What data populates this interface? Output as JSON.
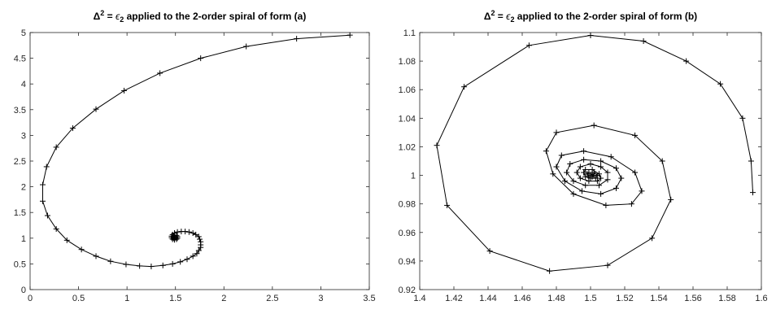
{
  "chart_data": [
    {
      "type": "line",
      "title_parts": {
        "delta": "Δ",
        "sup": "2",
        "eq": " = ",
        "eps": "ϵ",
        "sub": "2",
        "rest": " applied to the 2-order spiral of form (a)"
      },
      "xlim": [
        0,
        3.5
      ],
      "ylim": [
        0,
        5
      ],
      "xticks": [
        0,
        0.5,
        1,
        1.5,
        2,
        2.5,
        3,
        3.5
      ],
      "xtick_labels": [
        "0",
        "0.5",
        "1",
        "1.5",
        "2",
        "2.5",
        "3",
        "3.5"
      ],
      "yticks": [
        0,
        0.5,
        1,
        1.5,
        2,
        2.5,
        3,
        3.5,
        4,
        4.5,
        5
      ],
      "ytick_labels": [
        "0",
        "0.5",
        "1",
        "1.5",
        "2",
        "2.5",
        "3",
        "3.5",
        "4",
        "4.5",
        "5"
      ],
      "grid": false,
      "series": [
        {
          "marker": "+",
          "color": "#000000",
          "x": [
            3.3,
            2.75,
            2.23,
            1.76,
            1.34,
            0.97,
            0.68,
            0.44,
            0.27,
            0.17,
            0.13,
            0.13,
            0.18,
            0.27,
            0.38,
            0.53,
            0.68,
            0.83,
            0.99,
            1.13,
            1.25,
            1.37,
            1.47,
            1.55,
            1.62,
            1.68,
            1.72,
            1.74,
            1.76,
            1.76,
            1.76,
            1.75,
            1.74,
            1.71,
            1.68,
            1.64,
            1.6,
            1.56,
            1.52,
            1.49,
            1.47,
            1.46,
            1.46,
            1.47,
            1.49,
            1.51,
            1.52,
            1.52,
            1.51,
            1.49,
            1.48,
            1.48,
            1.49,
            1.5
          ],
          "y": [
            4.95,
            4.88,
            4.73,
            4.5,
            4.21,
            3.87,
            3.51,
            3.14,
            2.77,
            2.39,
            2.04,
            1.72,
            1.44,
            1.18,
            0.96,
            0.78,
            0.65,
            0.55,
            0.49,
            0.46,
            0.45,
            0.47,
            0.5,
            0.54,
            0.59,
            0.65,
            0.7,
            0.76,
            0.82,
            0.87,
            0.93,
            0.98,
            1.03,
            1.07,
            1.1,
            1.12,
            1.13,
            1.13,
            1.12,
            1.1,
            1.07,
            1.04,
            1.01,
            0.98,
            0.97,
            0.98,
            1.0,
            1.03,
            1.05,
            1.05,
            1.03,
            1.0,
            1.0,
            1.01
          ]
        }
      ]
    },
    {
      "type": "line",
      "title_parts": {
        "delta": "Δ",
        "sup": "2",
        "eq": " = ",
        "eps": "ϵ",
        "sub": "2",
        "rest": " applied to the 2-order spiral of form (b)"
      },
      "xlim": [
        1.4,
        1.6
      ],
      "ylim": [
        0.92,
        1.1
      ],
      "xticks": [
        1.4,
        1.42,
        1.44,
        1.46,
        1.48,
        1.5,
        1.52,
        1.54,
        1.56,
        1.58,
        1.6
      ],
      "xtick_labels": [
        "1.4",
        "1.42",
        "1.44",
        "1.46",
        "1.48",
        "1.5",
        "1.52",
        "1.54",
        "1.56",
        "1.58",
        "1.6"
      ],
      "yticks": [
        0.92,
        0.94,
        0.96,
        0.98,
        1.0,
        1.02,
        1.04,
        1.06,
        1.08,
        1.1
      ],
      "ytick_labels": [
        "0.92",
        "0.94",
        "0.96",
        "0.98",
        "1",
        "1.02",
        "1.04",
        "1.06",
        "1.08",
        "1.1"
      ],
      "grid": false,
      "series": [
        {
          "marker": "+",
          "color": "#000000",
          "x": [
            1.595,
            1.594,
            1.589,
            1.576,
            1.556,
            1.531,
            1.5,
            1.464,
            1.426,
            1.41,
            1.416,
            1.441,
            1.476,
            1.51,
            1.536,
            1.547,
            1.542,
            1.526,
            1.502,
            1.48,
            1.474,
            1.478,
            1.49,
            1.509,
            1.524,
            1.53,
            1.526,
            1.512,
            1.496,
            1.483,
            1.48,
            1.485,
            1.495,
            1.506,
            1.515,
            1.518,
            1.515,
            1.506,
            1.496,
            1.488,
            1.486,
            1.49,
            1.497,
            1.505,
            1.51,
            1.51,
            1.506,
            1.5,
            1.494,
            1.492,
            1.494,
            1.499,
            1.504,
            1.506,
            1.505,
            1.501,
            1.497,
            1.496,
            1.497,
            1.5,
            1.503,
            1.504,
            1.502,
            1.499,
            1.498,
            1.499,
            1.501,
            1.502,
            1.501,
            1.5
          ],
          "y": [
            0.988,
            1.01,
            1.04,
            1.064,
            1.08,
            1.094,
            1.098,
            1.091,
            1.062,
            1.021,
            0.979,
            0.947,
            0.933,
            0.937,
            0.956,
            0.983,
            1.01,
            1.028,
            1.035,
            1.03,
            1.017,
            1.001,
            0.987,
            0.979,
            0.98,
            0.989,
            1.002,
            1.013,
            1.017,
            1.014,
            1.006,
            0.996,
            0.989,
            0.987,
            0.991,
            0.998,
            1.005,
            1.01,
            1.011,
            1.008,
            1.002,
            0.996,
            0.993,
            0.993,
            0.997,
            1.002,
            1.006,
            1.008,
            1.006,
            1.002,
            0.998,
            0.996,
            0.996,
            0.998,
            1.001,
            1.004,
            1.004,
            1.002,
            0.999,
            0.998,
            0.998,
            1.0,
            1.002,
            1.002,
            1.001,
            0.999,
            0.999,
            1.0,
            1.001,
            1.0
          ]
        }
      ]
    }
  ]
}
